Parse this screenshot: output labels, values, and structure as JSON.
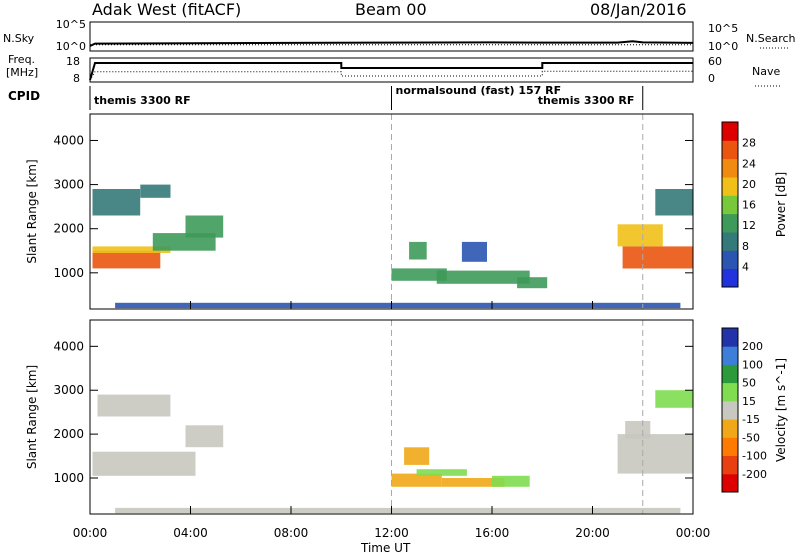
{
  "header": {
    "station": "Adak West (fitACF)",
    "beam": "Beam 00",
    "date": "08/Jan/2016"
  },
  "strip_labels": {
    "nsky": "N.Sky",
    "nsearch": "N.Search",
    "freq_line1": "Freq.",
    "freq_line2": "[MHz]",
    "nave": "Nave",
    "cpid": "CPID",
    "sky_ticks_left": [
      "10^5",
      "10^0"
    ],
    "sky_ticks_right": [
      "10^5",
      "10^0"
    ],
    "freq_ticks_left": [
      "18",
      "8"
    ],
    "nave_ticks_right": [
      "60",
      "0"
    ]
  },
  "cpid_segments": [
    {
      "label": "themis 3300 RF",
      "start_h": 0,
      "end_h": 12
    },
    {
      "label": "normalsound (fast) 157 RF",
      "start_h": 12,
      "end_h": 22
    },
    {
      "label": "themis 3300 RF",
      "start_h": 22,
      "end_h": 24
    }
  ],
  "x_axis": {
    "label": "Time UT",
    "range_h": [
      0,
      24
    ],
    "tick_labels": [
      "00:00",
      "04:00",
      "08:00",
      "12:00",
      "16:00",
      "20:00",
      "00:00"
    ]
  },
  "colors": {
    "power_scale": [
      "#2233dd",
      "#2a55b0",
      "#357a7a",
      "#3e9a5a",
      "#77c83a",
      "#f0c018",
      "#f08a10",
      "#ea5510",
      "#dd0000"
    ],
    "velocity_scale": [
      "#2233aa",
      "#3d7fd8",
      "#2a9a3a",
      "#80dd50",
      "#c8c8c0",
      "#f0a818",
      "#ff7a00",
      "#e84010",
      "#dd0000"
    ],
    "ground_scatter": "#c8c8c0"
  },
  "chart_data": [
    {
      "type": "line",
      "title": "N.Sky / N.Search",
      "ylabel": "N.Sky",
      "ylabel_right": "N.Search",
      "yscale": "log",
      "ylim": [
        1,
        100000
      ],
      "series": [
        {
          "name": "N.Sky",
          "x": [
            0,
            0.2,
            4,
            8,
            12,
            16,
            18,
            21,
            21.6,
            22,
            24
          ],
          "y": [
            1,
            4,
            5,
            6,
            7,
            8,
            7,
            7,
            16,
            8,
            6
          ]
        },
        {
          "name": "N.Search",
          "x": [
            0,
            24
          ],
          "y": [
            2,
            2
          ]
        }
      ]
    },
    {
      "type": "line",
      "title": "Freq. / Nave",
      "ylabel": "Freq. [MHz]",
      "ylabel_right": "Nave",
      "ylim": [
        8,
        18
      ],
      "ylim_right": [
        0,
        60
      ],
      "series": [
        {
          "name": "Freq. [MHz]",
          "x": [
            0,
            0.2,
            10,
            10,
            18,
            18,
            24
          ],
          "y": [
            8,
            16.5,
            16.5,
            14,
            14,
            16.5,
            16.5
          ]
        },
        {
          "name": "Nave",
          "x": [
            0,
            0.2,
            10,
            10,
            18,
            18,
            24
          ],
          "y": [
            0,
            25,
            25,
            12,
            12,
            26,
            26
          ]
        }
      ]
    },
    {
      "type": "heatmap",
      "quantity": "Power",
      "colorbar_label": "Power [dB]",
      "ylabel": "Slant Range [km]",
      "y_ticks": [
        1000,
        2000,
        3000,
        4000
      ],
      "ylim": [
        180,
        4600
      ],
      "xlim_h": [
        0,
        24
      ],
      "colorbar_ticks": [
        4,
        8,
        12,
        16,
        20,
        24,
        28
      ],
      "colorbar_range": [
        0,
        32
      ],
      "regions": [
        {
          "t0": 0.1,
          "t1": 2.8,
          "r0": 1100,
          "r1": 1500,
          "value": 27
        },
        {
          "t0": 0.1,
          "t1": 3.2,
          "r0": 1450,
          "r1": 1600,
          "value": 18
        },
        {
          "t0": 2.5,
          "t1": 5.0,
          "r0": 1500,
          "r1": 1900,
          "value": 12
        },
        {
          "t0": 3.8,
          "t1": 5.3,
          "r0": 1800,
          "r1": 2300,
          "value": 14
        },
        {
          "t0": 0.1,
          "t1": 2.0,
          "r0": 2300,
          "r1": 2900,
          "value": 8
        },
        {
          "t0": 2.0,
          "t1": 3.2,
          "r0": 2700,
          "r1": 3000,
          "value": 9
        },
        {
          "t0": 12.7,
          "t1": 13.4,
          "r0": 1300,
          "r1": 1700,
          "value": 13
        },
        {
          "t0": 12.0,
          "t1": 14.2,
          "r0": 820,
          "r1": 1100,
          "value": 11
        },
        {
          "t0": 13.8,
          "t1": 17.5,
          "r0": 750,
          "r1": 1050,
          "value": 13
        },
        {
          "t0": 17.0,
          "t1": 18.2,
          "r0": 650,
          "r1": 900,
          "value": 12
        },
        {
          "t0": 14.8,
          "t1": 15.8,
          "r0": 1250,
          "r1": 1700,
          "value": 7
        },
        {
          "t0": 21.2,
          "t1": 24.0,
          "r0": 1100,
          "r1": 1600,
          "value": 26
        },
        {
          "t0": 21.0,
          "t1": 22.8,
          "r0": 1600,
          "r1": 2100,
          "value": 19
        },
        {
          "t0": 22.5,
          "t1": 24.0,
          "r0": 2300,
          "r1": 2900,
          "value": 8
        },
        {
          "t0": 1.0,
          "t1": 23.5,
          "r0": 200,
          "r1": 320,
          "value": 6
        }
      ]
    },
    {
      "type": "heatmap",
      "quantity": "Velocity",
      "colorbar_label": "Velocity [m s^-1]",
      "ylabel": "Slant Range [km]",
      "y_ticks": [
        1000,
        2000,
        3000,
        4000
      ],
      "ylim": [
        180,
        4600
      ],
      "xlim_h": [
        0,
        24
      ],
      "colorbar_ticks": [
        200,
        100,
        50,
        15,
        -15,
        -50,
        -100,
        -200
      ],
      "colorbar_range": [
        -250,
        250
      ],
      "regions": [
        {
          "t0": 0.1,
          "t1": 4.2,
          "r0": 1050,
          "r1": 1600,
          "value": 0
        },
        {
          "t0": 3.8,
          "t1": 5.3,
          "r0": 1700,
          "r1": 2200,
          "value": 0
        },
        {
          "t0": 0.3,
          "t1": 3.2,
          "r0": 2400,
          "r1": 2900,
          "value": 0
        },
        {
          "t0": 12.5,
          "t1": 13.5,
          "r0": 1300,
          "r1": 1700,
          "value": -60
        },
        {
          "t0": 12.0,
          "t1": 14.0,
          "r0": 800,
          "r1": 1100,
          "value": -70
        },
        {
          "t0": 14.0,
          "t1": 16.5,
          "r0": 800,
          "r1": 1000,
          "value": -50
        },
        {
          "t0": 16.0,
          "t1": 17.5,
          "r0": 800,
          "r1": 1050,
          "value": 30
        },
        {
          "t0": 13.0,
          "t1": 15.0,
          "r0": 1050,
          "r1": 1200,
          "value": 40
        },
        {
          "t0": 21.0,
          "t1": 24.0,
          "r0": 1100,
          "r1": 2000,
          "value": 0
        },
        {
          "t0": 21.3,
          "t1": 22.3,
          "r0": 1900,
          "r1": 2300,
          "value": 20
        },
        {
          "t0": 22.5,
          "t1": 24.0,
          "r0": 2600,
          "r1": 3000,
          "value": 40
        },
        {
          "t0": 1.0,
          "t1": 23.5,
          "r0": 200,
          "r1": 320,
          "value": 10
        }
      ]
    }
  ]
}
